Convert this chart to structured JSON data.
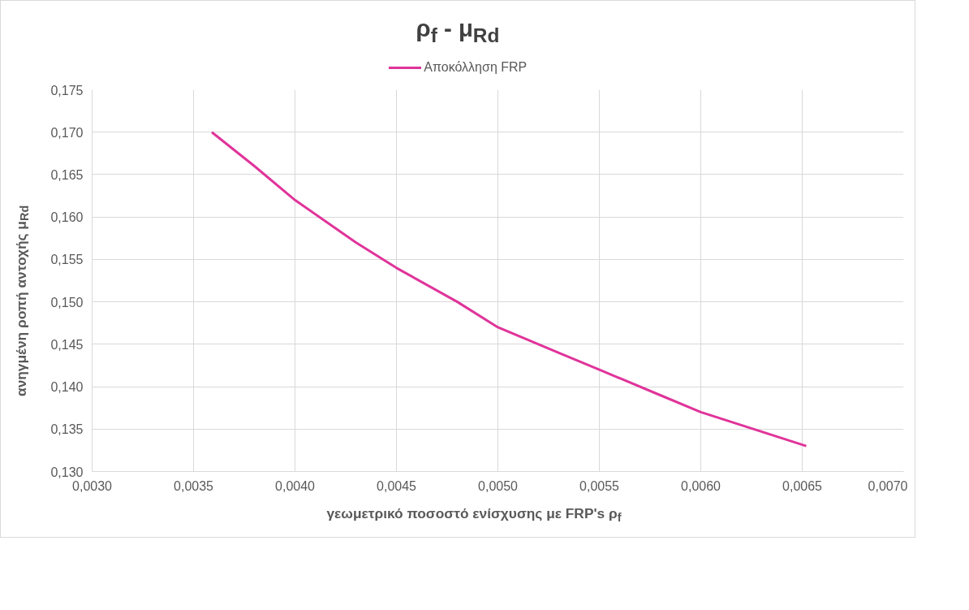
{
  "chart_data": {
    "type": "line",
    "title": "ρ$_{f}$ - μ$_{Rd}$",
    "xlabel": "γεωμετρικό ποσοστό ενίσχυσης με FRP's ρ$_{f}$",
    "ylabel": "ανηγμένη ροπή αντοχής μ$_{Rd}$",
    "series": [
      {
        "name": "Αποκόλληση FRP",
        "color": "#e0349a",
        "x": [
          0.00359,
          0.0038,
          0.004,
          0.0043,
          0.0045,
          0.0048,
          0.005,
          0.0053,
          0.0055,
          0.0058,
          0.006,
          0.00652
        ],
        "values": [
          0.17,
          0.166,
          0.162,
          0.157,
          0.154,
          0.15,
          0.147,
          0.144,
          0.142,
          0.139,
          0.137,
          0.133
        ]
      }
    ],
    "xlim": [
      0.003,
      0.007
    ],
    "xticks": [
      {
        "value": 0.003,
        "label": "0,0030"
      },
      {
        "value": 0.0035,
        "label": "0,0035"
      },
      {
        "value": 0.004,
        "label": "0,0040"
      },
      {
        "value": 0.0045,
        "label": "0,0045"
      },
      {
        "value": 0.005,
        "label": "0,0050"
      },
      {
        "value": 0.0055,
        "label": "0,0055"
      },
      {
        "value": 0.006,
        "label": "0,0060"
      },
      {
        "value": 0.0065,
        "label": "0,0065"
      },
      {
        "value": 0.007,
        "label": "0,0070"
      }
    ],
    "ylim": [
      0.13,
      0.175
    ],
    "yticks": [
      {
        "value": 0.13,
        "label": "0,130"
      },
      {
        "value": 0.135,
        "label": "0,135"
      },
      {
        "value": 0.14,
        "label": "0,140"
      },
      {
        "value": 0.145,
        "label": "0,145"
      },
      {
        "value": 0.15,
        "label": "0,150"
      },
      {
        "value": 0.155,
        "label": "0,155"
      },
      {
        "value": 0.16,
        "label": "0,160"
      },
      {
        "value": 0.165,
        "label": "0,165"
      },
      {
        "value": 0.17,
        "label": "0,170"
      },
      {
        "value": 0.175,
        "label": "0,175"
      }
    ],
    "grid": true,
    "legend": "top",
    "marker": "none",
    "line_style": "solid"
  }
}
